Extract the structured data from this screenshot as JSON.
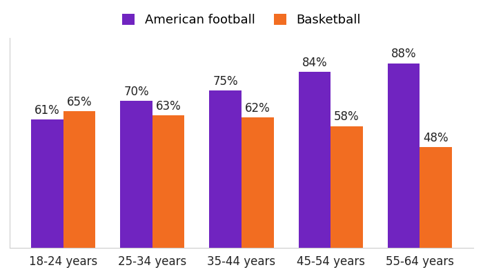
{
  "chart_data": {
    "type": "bar",
    "categories": [
      "18-24 years",
      "25-34 years",
      "35-44 years",
      "45-54 years",
      "55-64 years"
    ],
    "series": [
      {
        "name": "American football",
        "color": "#7024c0",
        "values": [
          61,
          70,
          75,
          84,
          88
        ],
        "value_labels": [
          "61%",
          "70%",
          "75%",
          "84%",
          "88%"
        ]
      },
      {
        "name": "Basketball",
        "color": "#f26d21",
        "values": [
          65,
          63,
          62,
          58,
          48
        ],
        "value_labels": [
          "65%",
          "63%",
          "62%",
          "58%",
          "48%"
        ]
      }
    ],
    "ylim": [
      0,
      100
    ],
    "yticks": [],
    "data_labels": true,
    "tick_labels": "x",
    "legend": "upper center",
    "grid": false
  }
}
